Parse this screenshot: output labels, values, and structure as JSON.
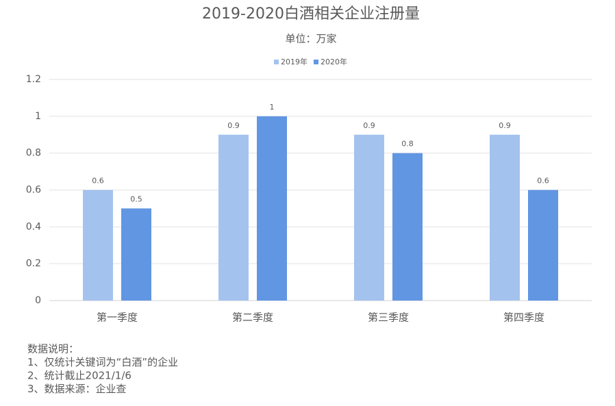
{
  "chart_data": {
    "type": "bar",
    "title": "2019-2020白酒相关企业注册量",
    "subtitle": "单位：万家",
    "categories": [
      "第一季度",
      "第二季度",
      "第三季度",
      "第四季度"
    ],
    "series": [
      {
        "name": "2019年",
        "color": "#a4c2ee",
        "values": [
          0.6,
          0.9,
          0.9,
          0.9
        ]
      },
      {
        "name": "2020年",
        "color": "#6196e3",
        "values": [
          0.5,
          1,
          0.8,
          0.6
        ]
      }
    ],
    "ylim": [
      0,
      1.2
    ],
    "yticks": [
      0,
      0.2,
      0.4,
      0.6,
      0.8,
      1,
      1.2
    ],
    "grid": true,
    "legend": "top",
    "notes": [
      "数据说明：",
      "1、仅统计关键词为“白酒”的企业",
      "2、统计截止2021/1/6",
      "3、数据来源：企业查"
    ]
  }
}
